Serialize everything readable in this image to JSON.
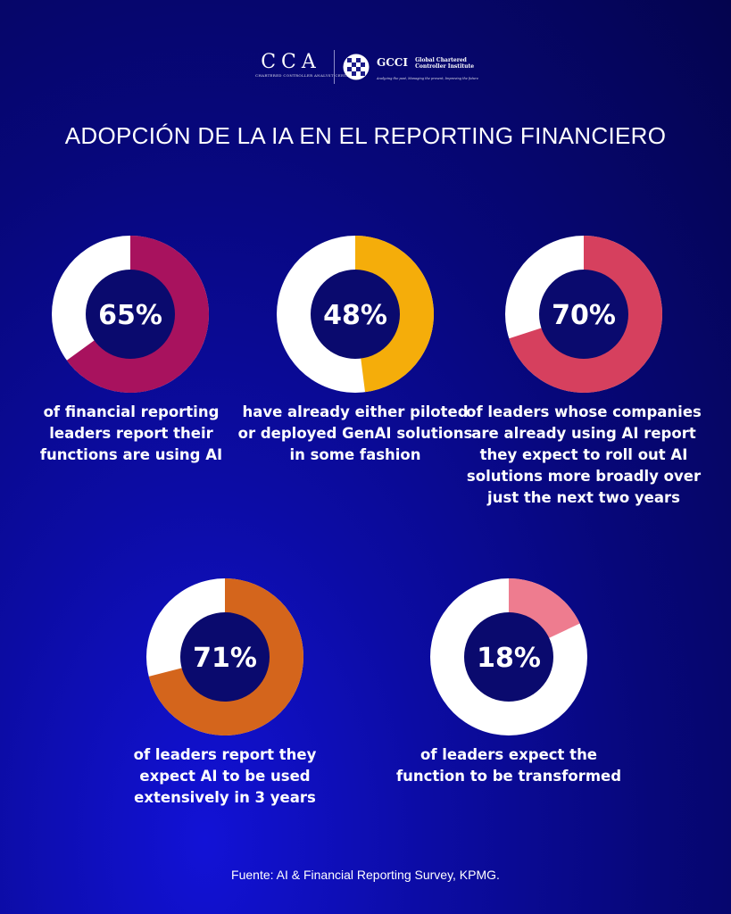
{
  "header": {
    "cca_mark": "CCA",
    "cca_subtitle": "CHARTERED CONTROLLER ANALYST CERTIFICATE",
    "gcci_mark": "GCCI",
    "gcci_name": "Global Chartered Controller Institute",
    "gcci_tagline": "Analyzing the past, Managing the present, Improving the future"
  },
  "title": "ADOPCIÓN DE LA IA EN EL REPORTING FINANCIERO",
  "source": "Fuente: AI & Financial Reporting Survey, KPMG.",
  "chart_data": [
    {
      "type": "pie",
      "value": 65,
      "label": "65%",
      "color": "#a8125e",
      "caption": "of financial reporting leaders  report their functions are using AI"
    },
    {
      "type": "pie",
      "value": 48,
      "label": "48%",
      "color": "#f5ad0a",
      "caption": "have already either piloted or deployed GenAI solutions in  some fashion"
    },
    {
      "type": "pie",
      "value": 70,
      "label": "70%",
      "color": "#d6405e",
      "caption": "of leaders whose companies  are already using AI report  they expect to roll out AI solutions more broadly over just the next two years"
    },
    {
      "type": "pie",
      "value": 71,
      "label": "71%",
      "color": "#d4651c",
      "caption": "of leaders report they expect  AI to be used extensively in  3 years"
    },
    {
      "type": "pie",
      "value": 18,
      "label": "18%",
      "color": "#ee7c8f",
      "caption": "of leaders expect the function to be transformed"
    }
  ],
  "colors": {
    "remainder": "#ffffff",
    "hole": "#0a0a6e"
  }
}
